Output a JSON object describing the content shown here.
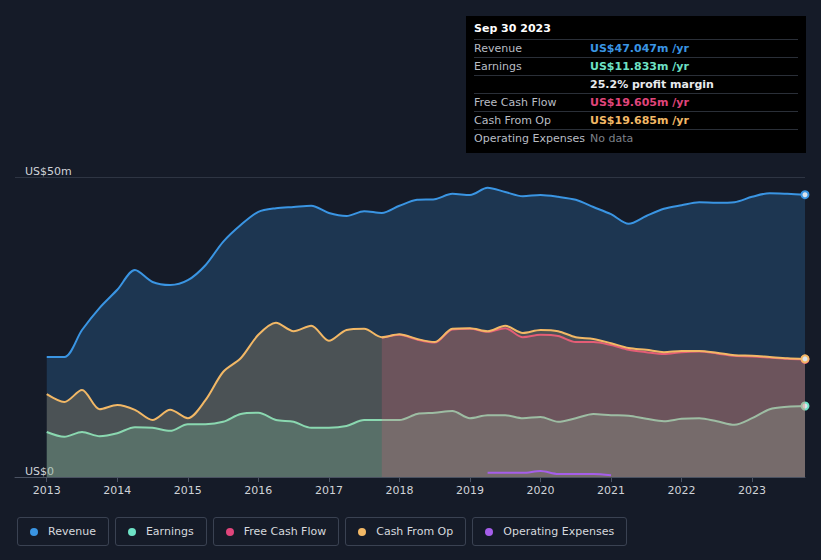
{
  "chart_data": {
    "type": "line",
    "x": [
      2013,
      2013.25,
      2013.5,
      2013.75,
      2014,
      2014.25,
      2014.5,
      2014.75,
      2015,
      2015.25,
      2015.5,
      2015.75,
      2016,
      2016.25,
      2016.5,
      2016.75,
      2017,
      2017.25,
      2017.5,
      2017.75,
      2018,
      2018.25,
      2018.5,
      2018.75,
      2019,
      2019.25,
      2019.5,
      2019.75,
      2020,
      2020.25,
      2020.5,
      2020.75,
      2021,
      2021.25,
      2021.5,
      2021.75,
      2022,
      2022.25,
      2022.5,
      2022.75,
      2023,
      2023.25,
      2023.5,
      2023.75
    ],
    "xlim": [
      2012.55,
      2023.75
    ],
    "xticks": [
      2013,
      2014,
      2015,
      2016,
      2017,
      2018,
      2019,
      2020,
      2021,
      2022,
      2023
    ],
    "ylim": [
      0,
      50
    ],
    "yticks": [
      {
        "value": 0,
        "label": "US$0"
      },
      {
        "value": 50,
        "label": "US$50m"
      }
    ],
    "grid": true,
    "legend": "bottom",
    "series": [
      {
        "name": "Revenue",
        "color": "#3a95e3",
        "values": [
          20,
          20,
          24.5,
          28.2,
          31.2,
          34.5,
          32.5,
          32,
          32.8,
          35.3,
          39.2,
          42,
          44.2,
          44.8,
          45,
          45.2,
          44,
          43.5,
          44.3,
          44,
          45.2,
          46.2,
          46.3,
          47.2,
          47,
          48.2,
          47.5,
          46.8,
          47,
          46.7,
          46.2,
          45,
          43.8,
          42.2,
          43.5,
          44.7,
          45.3,
          45.8,
          45.7,
          45.8,
          46.7,
          47.3,
          47.2,
          47.047
        ]
      },
      {
        "name": "Earnings",
        "color": "#6ee2c6",
        "values": [
          7.5,
          6.7,
          7.5,
          6.8,
          7.3,
          8.3,
          8.2,
          7.7,
          8.8,
          8.8,
          9.2,
          10.5,
          10.7,
          9.5,
          9.2,
          8.2,
          8.2,
          8.5,
          9.5,
          9.5,
          9.5,
          10.5,
          10.7,
          11,
          9.8,
          10.3,
          10.3,
          9.8,
          10,
          9.2,
          9.8,
          10.5,
          10.3,
          10.2,
          9.7,
          9.3,
          9.7,
          9.8,
          9.3,
          8.7,
          9.8,
          11.3,
          11.7,
          11.833
        ]
      },
      {
        "name": "Free Cash Flow",
        "color": "#e0457b",
        "values": [
          null,
          null,
          null,
          null,
          null,
          null,
          null,
          null,
          null,
          null,
          null,
          null,
          null,
          null,
          null,
          null,
          null,
          null,
          null,
          23.2,
          23.7,
          22.9,
          22.4,
          24.6,
          24.7,
          24.2,
          24.8,
          23.3,
          23.7,
          23.5,
          22.5,
          22.5,
          22,
          21.2,
          20.8,
          20.5,
          20.8,
          20.9,
          20.6,
          20.2,
          20.1,
          19.9,
          19.7,
          19.605
        ]
      },
      {
        "name": "Cash From Op",
        "color": "#f2b866",
        "values": [
          13.8,
          12.5,
          14.5,
          11.3,
          12,
          11.2,
          9.5,
          11.2,
          9.8,
          12.8,
          17.5,
          19.8,
          23.7,
          25.7,
          24.3,
          25.2,
          22.7,
          24.5,
          24.7,
          23.3,
          23.8,
          23,
          22.5,
          24.7,
          24.8,
          24.3,
          25.2,
          24,
          24.5,
          24.3,
          23.3,
          23,
          22.3,
          21.5,
          21.2,
          20.8,
          21,
          21,
          20.7,
          20.3,
          20.2,
          20,
          19.8,
          19.685
        ]
      },
      {
        "name": "Operating Expenses",
        "color": "#a55eea",
        "type": "line_only",
        "values": [
          null,
          null,
          null,
          null,
          null,
          null,
          null,
          null,
          null,
          null,
          null,
          null,
          null,
          null,
          null,
          null,
          null,
          null,
          null,
          null,
          null,
          null,
          null,
          null,
          null,
          0.7,
          0.7,
          0.7,
          1.0,
          0.5,
          0.5,
          0.5,
          0.3,
          null,
          null,
          null,
          null,
          null,
          null,
          null,
          null,
          null,
          null,
          null
        ]
      }
    ],
    "annotations": {
      "title": "Sep 30 2023",
      "rows": [
        {
          "label": "Revenue",
          "value": "US$47.047m /yr"
        },
        {
          "label": "Earnings",
          "value": "US$11.833m /yr"
        },
        {
          "label": "",
          "value": "25.2% profit margin"
        },
        {
          "label": "Free Cash Flow",
          "value": "US$19.605m /yr"
        },
        {
          "label": "Cash From Op",
          "value": "US$19.685m /yr"
        },
        {
          "label": "Operating Expenses",
          "value": "No data"
        }
      ]
    }
  }
}
